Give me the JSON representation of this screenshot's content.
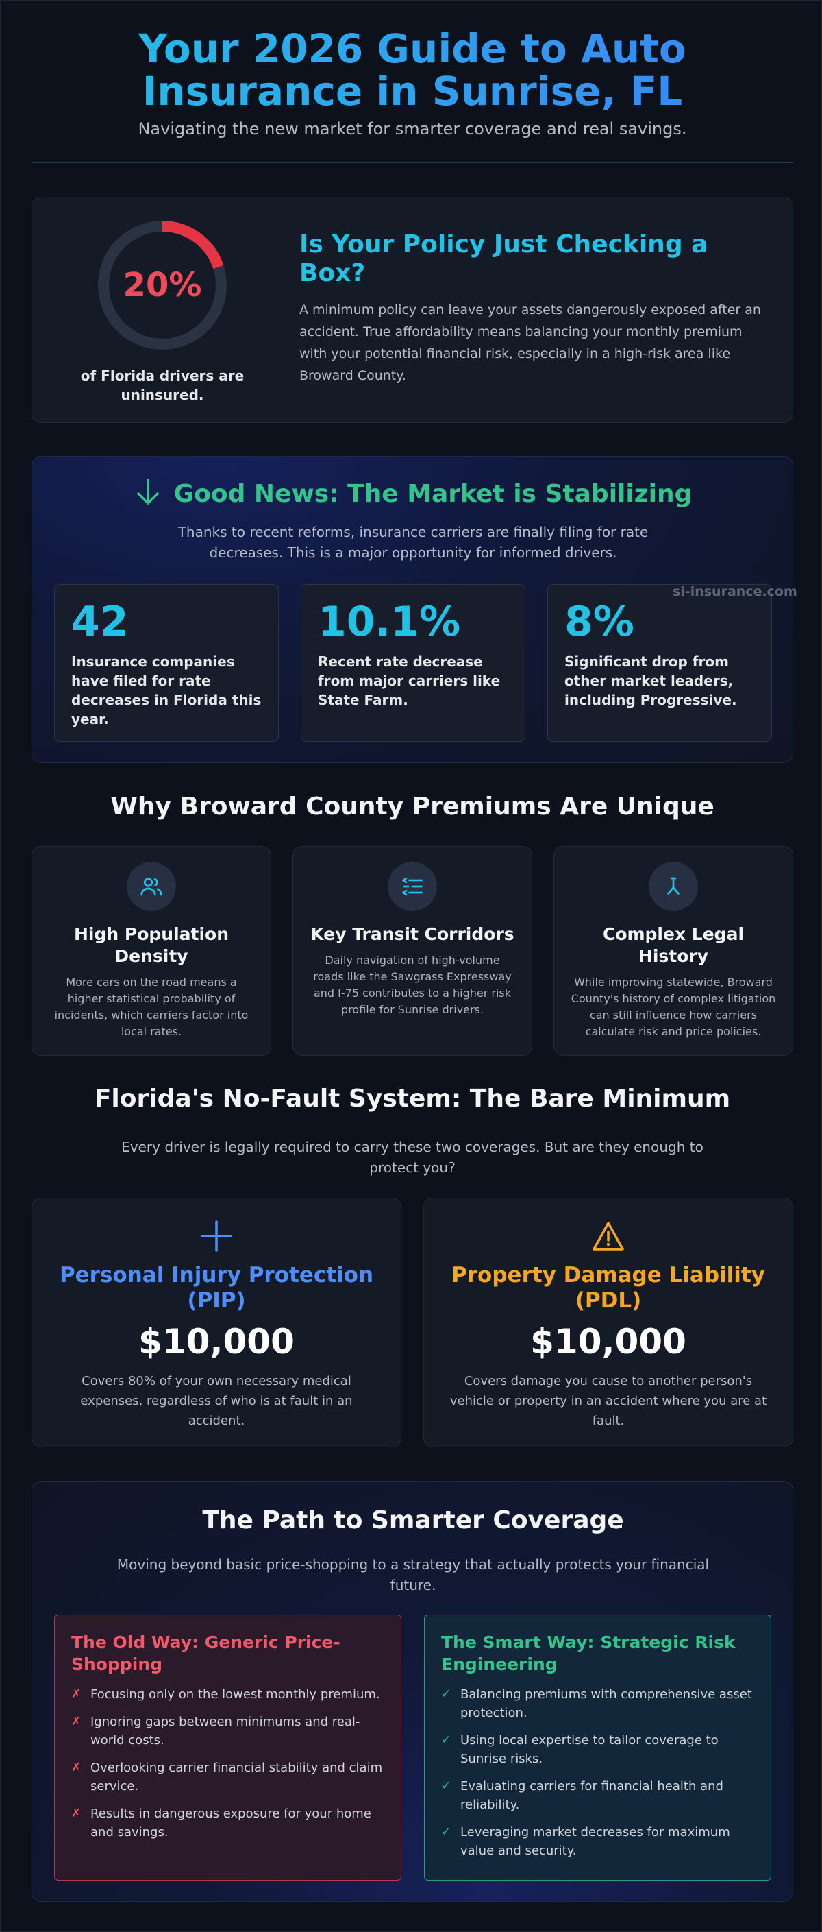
{
  "header": {
    "title_line1": "Your 2026 Guide to Auto",
    "title_line2": "Insurance in Sunrise, FL",
    "subtitle": "Navigating the new market for smarter coverage and real savings."
  },
  "policy_check": {
    "stat_value": "20%",
    "stat_fraction": 0.2,
    "stat_caption": "of Florida drivers are uninsured.",
    "heading": "Is Your Policy Just Checking a Box?",
    "body": "A minimum policy can leave your assets dangerously exposed after an accident. True affordability means balancing your monthly premium with your potential financial risk, especially in a high-risk area like Broward County.",
    "colors": {
      "ring": "#e53545",
      "track": "#2a3344"
    }
  },
  "market": {
    "heading": "Good News: The Market is Stabilizing",
    "icon": "arrow-down-icon",
    "subtitle": "Thanks to recent reforms, insurance carriers are finally filing for rate decreases. This is a major opportunity for informed drivers.",
    "stats": [
      {
        "value": "42",
        "label": "Insurance companies have filed for rate decreases in Florida this year."
      },
      {
        "value": "10.1%",
        "label": "Recent rate decrease from major carriers like State Farm."
      },
      {
        "value": "8%",
        "label": "Significant drop from other market leaders, including Progressive."
      }
    ],
    "watermark": "si-insurance.com"
  },
  "broward": {
    "heading": "Why Broward County Premiums Are Unique",
    "features": [
      {
        "icon": "users-icon",
        "title": "High Population Density",
        "body": "More cars on the road means a higher statistical probability of incidents, which carriers factor into local rates."
      },
      {
        "icon": "route-icon",
        "title": "Key Transit Corridors",
        "body": "Daily navigation of high-volume roads like the Sawgrass Expressway and I-75 contributes to a higher risk profile for Sunrise drivers."
      },
      {
        "icon": "gavel-icon",
        "title": "Complex Legal History",
        "body": "While improving statewide, Broward County's history of complex litigation can still influence how carriers calculate risk and price policies."
      }
    ]
  },
  "no_fault": {
    "heading": "Florida's No-Fault System: The Bare Minimum",
    "subtitle": "Every driver is legally required to carry these two coverages. But are they enough to protect you?",
    "coverages": [
      {
        "icon": "plus-icon",
        "title": "Personal Injury Protection (PIP)",
        "amount": "$10,000",
        "body": "Covers 80% of your own necessary medical expenses, regardless of who is at fault in an accident.",
        "color": "#4f8ef7"
      },
      {
        "icon": "warning-icon",
        "title": "Property Damage Liability (PDL)",
        "amount": "$10,000",
        "body": "Covers damage you cause to another person's vehicle or property in an accident where you are at fault.",
        "color": "#f5a623"
      }
    ]
  },
  "path": {
    "heading": "The Path to Smarter Coverage",
    "subtitle": "Moving beyond basic price-shopping to a strategy that actually protects your financial future.",
    "old_way": {
      "title": "The Old Way: Generic Price-Shopping",
      "marker": "✗",
      "items": [
        "Focusing only on the lowest monthly premium.",
        "Ignoring gaps between minimums and real-world costs.",
        "Overlooking carrier financial stability and claim service.",
        "Results in dangerous exposure for your home and savings."
      ]
    },
    "smart_way": {
      "title": "The Smart Way: Strategic Risk Engineering",
      "marker": "✓",
      "items": [
        "Balancing premiums with comprehensive asset protection.",
        "Using local expertise to tailor coverage to Sunrise risks.",
        "Evaluating carriers for financial health and reliability.",
        "Leveraging market decreases for maximum value and security."
      ]
    }
  }
}
